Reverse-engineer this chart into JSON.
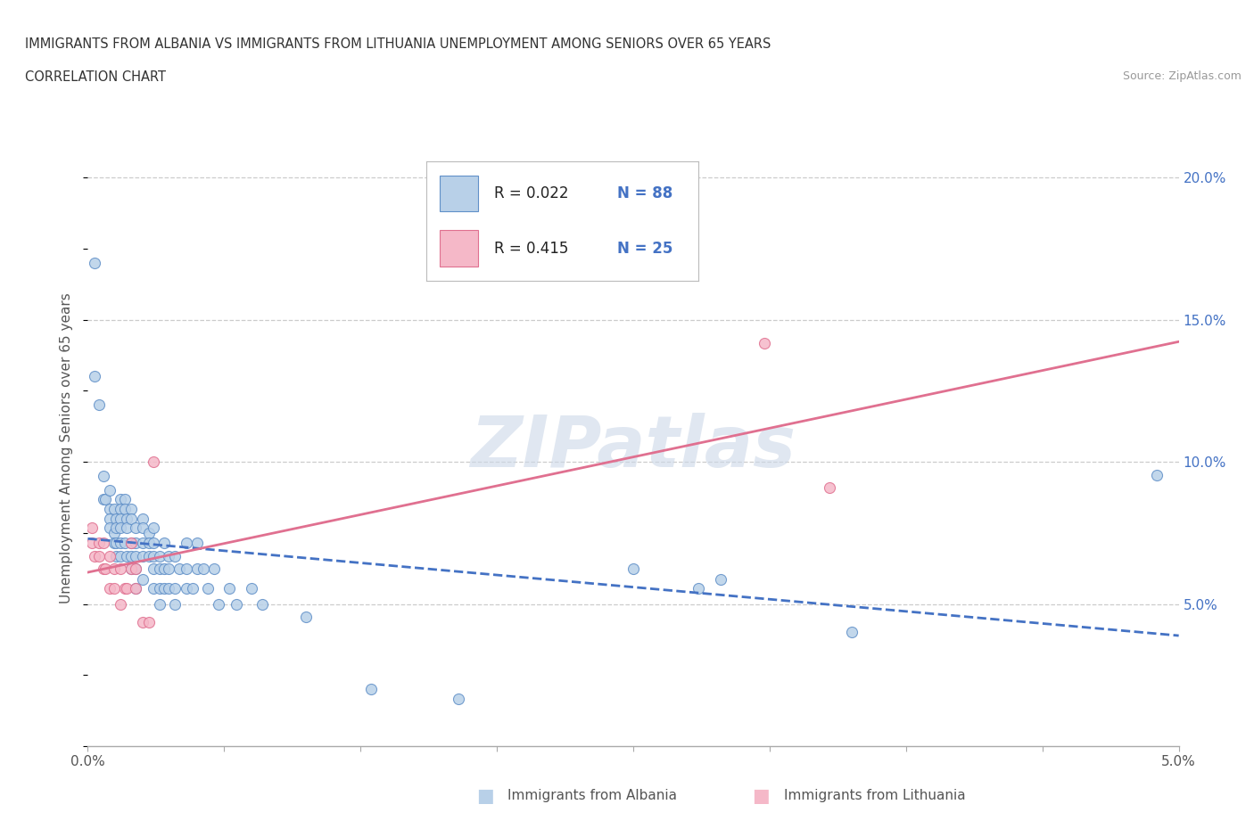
{
  "title_line1": "IMMIGRANTS FROM ALBANIA VS IMMIGRANTS FROM LITHUANIA UNEMPLOYMENT AMONG SENIORS OVER 65 YEARS",
  "title_line2": "CORRELATION CHART",
  "source": "Source: ZipAtlas.com",
  "ylabel": "Unemployment Among Seniors over 65 years",
  "xlim": [
    0.0,
    0.05
  ],
  "ylim": [
    0.0,
    0.21
  ],
  "yticks": [
    0.05,
    0.1,
    0.15,
    0.2
  ],
  "ytick_labels": [
    "5.0%",
    "10.0%",
    "15.0%",
    "20.0%"
  ],
  "xticks": [
    0.0,
    0.00625,
    0.0125,
    0.01875,
    0.025,
    0.03125,
    0.0375,
    0.04375,
    0.05
  ],
  "xtick_labels_show": [
    "0.0%",
    "",
    "",
    "",
    "",
    "",
    "",
    "",
    "5.0%"
  ],
  "watermark": "ZIPatlas",
  "legend_r_albania": "R = 0.022",
  "legend_n_albania": "N = 88",
  "legend_r_lithuania": "R = 0.415",
  "legend_n_lithuania": "N = 25",
  "legend_label_albania": "Immigrants from Albania",
  "legend_label_lithuania": "Immigrants from Lithuania",
  "albania_fill": "#b8d0e8",
  "lithuania_fill": "#f5b8c8",
  "albania_edge": "#6090c8",
  "lithuania_edge": "#e07090",
  "albania_line_color": "#4472c4",
  "lithuania_line_color": "#e07090",
  "text_color_blue": "#4472c4",
  "text_color_dark": "#222222",
  "albania_scatter": [
    [
      0.0003,
      0.17
    ],
    [
      0.0003,
      0.13
    ],
    [
      0.0005,
      0.12
    ],
    [
      0.0007,
      0.095
    ],
    [
      0.0007,
      0.087
    ],
    [
      0.0008,
      0.087
    ],
    [
      0.001,
      0.09
    ],
    [
      0.001,
      0.0833
    ],
    [
      0.001,
      0.08
    ],
    [
      0.001,
      0.0769
    ],
    [
      0.0012,
      0.0833
    ],
    [
      0.0012,
      0.075
    ],
    [
      0.0012,
      0.0714
    ],
    [
      0.0013,
      0.08
    ],
    [
      0.0013,
      0.0769
    ],
    [
      0.0013,
      0.0714
    ],
    [
      0.0013,
      0.0667
    ],
    [
      0.0015,
      0.087
    ],
    [
      0.0015,
      0.0833
    ],
    [
      0.0015,
      0.08
    ],
    [
      0.0015,
      0.0769
    ],
    [
      0.0015,
      0.0714
    ],
    [
      0.0015,
      0.0667
    ],
    [
      0.0017,
      0.087
    ],
    [
      0.0017,
      0.0833
    ],
    [
      0.0017,
      0.0714
    ],
    [
      0.0018,
      0.08
    ],
    [
      0.0018,
      0.0769
    ],
    [
      0.0018,
      0.0667
    ],
    [
      0.002,
      0.0833
    ],
    [
      0.002,
      0.08
    ],
    [
      0.002,
      0.0714
    ],
    [
      0.002,
      0.0667
    ],
    [
      0.002,
      0.0625
    ],
    [
      0.0022,
      0.0769
    ],
    [
      0.0022,
      0.0714
    ],
    [
      0.0022,
      0.0667
    ],
    [
      0.0022,
      0.0625
    ],
    [
      0.0022,
      0.0556
    ],
    [
      0.0025,
      0.08
    ],
    [
      0.0025,
      0.0769
    ],
    [
      0.0025,
      0.0714
    ],
    [
      0.0025,
      0.0667
    ],
    [
      0.0025,
      0.0588
    ],
    [
      0.0028,
      0.075
    ],
    [
      0.0028,
      0.0714
    ],
    [
      0.0028,
      0.0667
    ],
    [
      0.003,
      0.0769
    ],
    [
      0.003,
      0.0714
    ],
    [
      0.003,
      0.0667
    ],
    [
      0.003,
      0.0625
    ],
    [
      0.003,
      0.0556
    ],
    [
      0.0033,
      0.0667
    ],
    [
      0.0033,
      0.0625
    ],
    [
      0.0033,
      0.0556
    ],
    [
      0.0033,
      0.05
    ],
    [
      0.0035,
      0.0714
    ],
    [
      0.0035,
      0.0625
    ],
    [
      0.0035,
      0.0556
    ],
    [
      0.0037,
      0.0667
    ],
    [
      0.0037,
      0.0625
    ],
    [
      0.0037,
      0.0556
    ],
    [
      0.004,
      0.0667
    ],
    [
      0.004,
      0.0556
    ],
    [
      0.004,
      0.05
    ],
    [
      0.0042,
      0.0625
    ],
    [
      0.0045,
      0.0714
    ],
    [
      0.0045,
      0.0625
    ],
    [
      0.0045,
      0.0556
    ],
    [
      0.0048,
      0.0556
    ],
    [
      0.005,
      0.0714
    ],
    [
      0.005,
      0.0625
    ],
    [
      0.0053,
      0.0625
    ],
    [
      0.0055,
      0.0556
    ],
    [
      0.0058,
      0.0625
    ],
    [
      0.006,
      0.05
    ],
    [
      0.0065,
      0.0556
    ],
    [
      0.0068,
      0.05
    ],
    [
      0.0075,
      0.0556
    ],
    [
      0.008,
      0.05
    ],
    [
      0.01,
      0.0455
    ],
    [
      0.013,
      0.02
    ],
    [
      0.017,
      0.0167
    ],
    [
      0.025,
      0.0625
    ],
    [
      0.028,
      0.0556
    ],
    [
      0.029,
      0.0588
    ],
    [
      0.035,
      0.04
    ],
    [
      0.049,
      0.0952
    ]
  ],
  "lithuania_scatter": [
    [
      0.0002,
      0.0769
    ],
    [
      0.0002,
      0.0714
    ],
    [
      0.0003,
      0.0667
    ],
    [
      0.0005,
      0.0714
    ],
    [
      0.0005,
      0.0667
    ],
    [
      0.0007,
      0.0714
    ],
    [
      0.0007,
      0.0625
    ],
    [
      0.0008,
      0.0625
    ],
    [
      0.001,
      0.0667
    ],
    [
      0.001,
      0.0556
    ],
    [
      0.0012,
      0.0625
    ],
    [
      0.0012,
      0.0556
    ],
    [
      0.0015,
      0.0625
    ],
    [
      0.0015,
      0.05
    ],
    [
      0.0017,
      0.0556
    ],
    [
      0.0018,
      0.0556
    ],
    [
      0.002,
      0.0714
    ],
    [
      0.002,
      0.0625
    ],
    [
      0.0022,
      0.0625
    ],
    [
      0.0022,
      0.0556
    ],
    [
      0.0025,
      0.0435
    ],
    [
      0.0028,
      0.0435
    ],
    [
      0.003,
      0.1
    ],
    [
      0.031,
      0.1417
    ],
    [
      0.034,
      0.0909
    ]
  ]
}
